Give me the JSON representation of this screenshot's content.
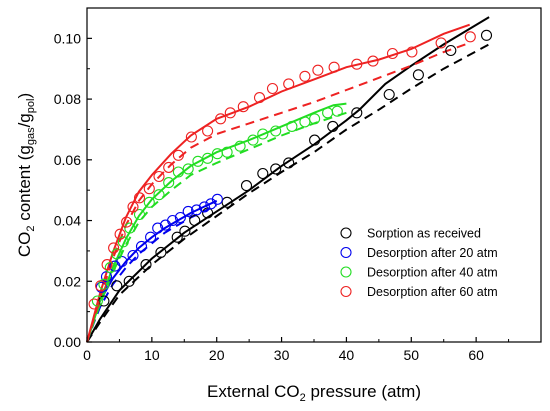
{
  "chart_data": {
    "type": "scatter",
    "xlabel": {
      "prefix": "External CO",
      "sub": "2",
      "suffix": " pressure (atm)"
    },
    "ylabel": {
      "prefix": "CO",
      "sub1": "2",
      "middle": " content (g",
      "sub2": "gas",
      "slash": "/g",
      "sub3": "pol",
      "suffix": ")"
    },
    "xlim": [
      0,
      70
    ],
    "ylim": [
      0,
      0.11
    ],
    "xticks": [
      0,
      10,
      20,
      30,
      40,
      50,
      60
    ],
    "yticks": [
      0.0,
      0.02,
      0.04,
      0.06,
      0.08,
      0.1
    ],
    "ytick_labels": [
      "0.00",
      "0.02",
      "0.04",
      "0.06",
      "0.08",
      "0.10"
    ],
    "legend_position": "lower-right",
    "grid": false,
    "series": [
      {
        "name": "Sorption as received",
        "color": "#000000",
        "points": [
          [
            2.6,
            0.0135
          ],
          [
            4.6,
            0.0185
          ],
          [
            6.5,
            0.02
          ],
          [
            9.1,
            0.0255
          ],
          [
            11.4,
            0.0295
          ],
          [
            13.9,
            0.0345
          ],
          [
            15.1,
            0.0365
          ],
          [
            16.6,
            0.04
          ],
          [
            18.6,
            0.0425
          ],
          [
            21.6,
            0.046
          ],
          [
            24.6,
            0.0515
          ],
          [
            27.1,
            0.0555
          ],
          [
            29.1,
            0.057
          ],
          [
            31.1,
            0.059
          ],
          [
            35.1,
            0.0665
          ],
          [
            37.9,
            0.071
          ],
          [
            41.6,
            0.0755
          ],
          [
            46.6,
            0.0815
          ],
          [
            51.1,
            0.088
          ],
          [
            56.1,
            0.096
          ],
          [
            61.6,
            0.101
          ]
        ],
        "fit_solid": [
          [
            0,
            0.0
          ],
          [
            2,
            0.0075
          ],
          [
            5,
            0.017
          ],
          [
            10,
            0.0275
          ],
          [
            15,
            0.036
          ],
          [
            20,
            0.043
          ],
          [
            25,
            0.05
          ],
          [
            30,
            0.058
          ],
          [
            35,
            0.065
          ],
          [
            40,
            0.073
          ],
          [
            42,
            0.0765
          ],
          [
            46,
            0.085
          ],
          [
            50,
            0.091
          ],
          [
            55,
            0.098
          ],
          [
            62,
            0.107
          ]
        ],
        "fit_dashed": [
          [
            0,
            0.0
          ],
          [
            2,
            0.0065
          ],
          [
            5,
            0.0155
          ],
          [
            10,
            0.0255
          ],
          [
            15,
            0.034
          ],
          [
            20,
            0.0415
          ],
          [
            25,
            0.049
          ],
          [
            30,
            0.056
          ],
          [
            35,
            0.0625
          ],
          [
            40,
            0.07
          ],
          [
            45,
            0.0765
          ],
          [
            50,
            0.0835
          ],
          [
            55,
            0.09
          ],
          [
            62,
            0.098
          ]
        ]
      },
      {
        "name": "Desorption after 20 atm",
        "color": "#0000ee",
        "points": [
          [
            2.2,
            0.018
          ],
          [
            3.0,
            0.0215
          ],
          [
            4.3,
            0.025
          ],
          [
            5.4,
            0.0265
          ],
          [
            7.1,
            0.0285
          ],
          [
            8.4,
            0.0315
          ],
          [
            9.8,
            0.0345
          ],
          [
            10.9,
            0.0375
          ],
          [
            12.1,
            0.0385
          ],
          [
            13.2,
            0.04
          ],
          [
            14.4,
            0.041
          ],
          [
            15.6,
            0.043
          ],
          [
            16.9,
            0.0435
          ],
          [
            18.1,
            0.0445
          ],
          [
            19.1,
            0.0455
          ],
          [
            20.1,
            0.047
          ]
        ],
        "fit_solid": [
          [
            0,
            0.0
          ],
          [
            1,
            0.007
          ],
          [
            2,
            0.0135
          ],
          [
            4,
            0.021
          ],
          [
            6,
            0.0265
          ],
          [
            8,
            0.031
          ],
          [
            10,
            0.0345
          ],
          [
            12,
            0.0375
          ],
          [
            14,
            0.04
          ],
          [
            16,
            0.0425
          ],
          [
            18,
            0.0445
          ],
          [
            20,
            0.0465
          ]
        ],
        "fit_dashed": [
          [
            0,
            0.0
          ],
          [
            1,
            0.006
          ],
          [
            2,
            0.0115
          ],
          [
            4,
            0.019
          ],
          [
            6,
            0.0245
          ],
          [
            8,
            0.029
          ],
          [
            10,
            0.0325
          ],
          [
            12,
            0.036
          ],
          [
            14,
            0.0385
          ],
          [
            16,
            0.041
          ],
          [
            18,
            0.043
          ],
          [
            20,
            0.045
          ]
        ]
      },
      {
        "name": "Desorption after 40 atm",
        "color": "#22dd22",
        "points": [
          [
            1.6,
            0.0135
          ],
          [
            2.6,
            0.019
          ],
          [
            3.6,
            0.0245
          ],
          [
            4.6,
            0.029
          ],
          [
            5.6,
            0.033
          ],
          [
            6.6,
            0.0375
          ],
          [
            8.1,
            0.042
          ],
          [
            9.6,
            0.046
          ],
          [
            11.1,
            0.0485
          ],
          [
            12.6,
            0.0525
          ],
          [
            14.1,
            0.056
          ],
          [
            15.6,
            0.057
          ],
          [
            17.1,
            0.0595
          ],
          [
            18.6,
            0.0605
          ],
          [
            20.1,
            0.062
          ],
          [
            21.6,
            0.0625
          ],
          [
            23.6,
            0.0645
          ],
          [
            25.6,
            0.0665
          ],
          [
            27.1,
            0.0685
          ],
          [
            29.1,
            0.0695
          ],
          [
            31.6,
            0.071
          ],
          [
            33.6,
            0.0725
          ],
          [
            35.1,
            0.0735
          ],
          [
            37.1,
            0.0755
          ],
          [
            38.6,
            0.076
          ]
        ],
        "fit_solid": [
          [
            0,
            0.0
          ],
          [
            2,
            0.0135
          ],
          [
            4,
            0.0245
          ],
          [
            6,
            0.034
          ],
          [
            8,
            0.0415
          ],
          [
            10,
            0.047
          ],
          [
            13,
            0.053
          ],
          [
            16,
            0.058
          ],
          [
            20,
            0.0625
          ],
          [
            25,
            0.0665
          ],
          [
            30,
            0.071
          ],
          [
            35,
            0.0755
          ],
          [
            38,
            0.078
          ],
          [
            40,
            0.0785
          ]
        ],
        "fit_dashed": [
          [
            0,
            0.0
          ],
          [
            2,
            0.0125
          ],
          [
            4,
            0.023
          ],
          [
            6,
            0.032
          ],
          [
            8,
            0.0395
          ],
          [
            10,
            0.0445
          ],
          [
            13,
            0.05
          ],
          [
            16,
            0.055
          ],
          [
            20,
            0.059
          ],
          [
            25,
            0.0635
          ],
          [
            30,
            0.068
          ],
          [
            35,
            0.072
          ],
          [
            40,
            0.0755
          ]
        ]
      },
      {
        "name": "Desorption after 60 atm",
        "color": "#ee2222",
        "points": [
          [
            1.1,
            0.0125
          ],
          [
            2.1,
            0.0185
          ],
          [
            3.1,
            0.0255
          ],
          [
            4.1,
            0.031
          ],
          [
            5.1,
            0.0355
          ],
          [
            6.1,
            0.0395
          ],
          [
            7.1,
            0.0445
          ],
          [
            8.1,
            0.0475
          ],
          [
            9.6,
            0.0505
          ],
          [
            11.1,
            0.0545
          ],
          [
            12.6,
            0.0575
          ],
          [
            14.1,
            0.0615
          ],
          [
            16.1,
            0.0675
          ],
          [
            18.6,
            0.0695
          ],
          [
            20.6,
            0.0735
          ],
          [
            22.1,
            0.0755
          ],
          [
            24.1,
            0.0775
          ],
          [
            26.6,
            0.0805
          ],
          [
            28.6,
            0.0835
          ],
          [
            31.1,
            0.085
          ],
          [
            33.6,
            0.0875
          ],
          [
            35.6,
            0.0895
          ],
          [
            38.1,
            0.0905
          ],
          [
            41.6,
            0.0915
          ],
          [
            44.1,
            0.0925
          ],
          [
            47.1,
            0.095
          ],
          [
            50.1,
            0.0955
          ],
          [
            54.6,
            0.0985
          ],
          [
            59.1,
            0.1005
          ]
        ],
        "fit_solid": [
          [
            0,
            0.0
          ],
          [
            2,
            0.016
          ],
          [
            4,
            0.0295
          ],
          [
            6,
            0.041
          ],
          [
            8,
            0.0495
          ],
          [
            10,
            0.055
          ],
          [
            13,
            0.062
          ],
          [
            16,
            0.068
          ],
          [
            20,
            0.0735
          ],
          [
            25,
            0.0775
          ],
          [
            30,
            0.0825
          ],
          [
            35,
            0.0865
          ],
          [
            40,
            0.0905
          ],
          [
            45,
            0.093
          ],
          [
            50,
            0.0965
          ],
          [
            55,
            0.1015
          ],
          [
            59,
            0.1045
          ]
        ],
        "fit_dashed": [
          [
            0,
            0.0
          ],
          [
            2,
            0.0145
          ],
          [
            4,
            0.0275
          ],
          [
            6,
            0.0385
          ],
          [
            8,
            0.0465
          ],
          [
            10,
            0.052
          ],
          [
            13,
            0.0585
          ],
          [
            16,
            0.064
          ],
          [
            20,
            0.0685
          ],
          [
            25,
            0.072
          ],
          [
            30,
            0.0755
          ],
          [
            35,
            0.079
          ],
          [
            40,
            0.083
          ],
          [
            45,
            0.087
          ],
          [
            50,
            0.091
          ],
          [
            55,
            0.0955
          ],
          [
            59,
            0.0985
          ]
        ]
      }
    ]
  }
}
